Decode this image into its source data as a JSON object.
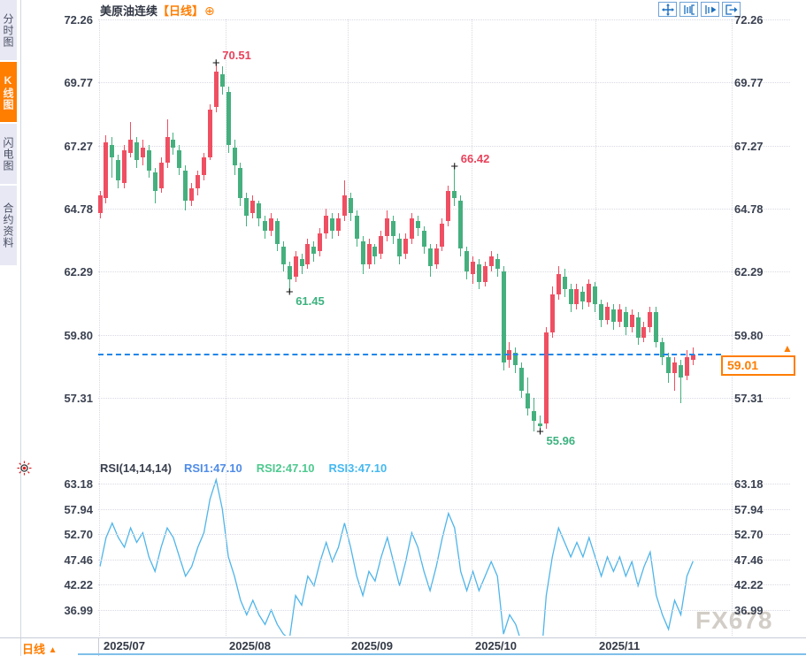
{
  "sidebar": {
    "items": [
      {
        "name": "timeshare-chart",
        "label": "分时图",
        "selected": false
      },
      {
        "name": "kline-chart",
        "label": "K线图",
        "selected": true
      },
      {
        "name": "lightning-chart",
        "label": "闪电图",
        "selected": false
      },
      {
        "name": "contract-info",
        "label": "合约资料",
        "selected": false
      }
    ]
  },
  "header": {
    "symbol_name": "美原油连续",
    "period_tag": "【日线】",
    "add_icon": "⊕",
    "toolbar_icons": [
      "pan-crosshair-icon",
      "zoom-range-icon",
      "playback-icon",
      "exit-chart-icon"
    ]
  },
  "current_price": {
    "value": "59.01",
    "marker": "▲"
  },
  "annotations": [
    {
      "text": "70.51",
      "index": 19,
      "price": 70.51,
      "type": "high",
      "color": "#e8415a"
    },
    {
      "text": "66.42",
      "index": 58,
      "price": 66.42,
      "type": "high",
      "color": "#e8415a"
    },
    {
      "text": "61.45",
      "index": 31,
      "price": 61.45,
      "type": "low",
      "color": "#3cb27f"
    },
    {
      "text": "55.96",
      "index": 72,
      "price": 55.96,
      "type": "low",
      "color": "#3cb27f"
    }
  ],
  "rsi_header": {
    "title": "RSI(14,14,14)",
    "rsi1": {
      "label": "RSI1:47.10",
      "color": "#4f8ce8"
    },
    "rsi2": {
      "label": "RSI2:47.10",
      "color": "#4ec98f"
    },
    "rsi3": {
      "label": "RSI3:47.10",
      "color": "#45b8f0"
    }
  },
  "bottom_bar": {
    "period_label": "日线",
    "arrow": "▲"
  },
  "watermark": "FX678",
  "colors": {
    "up": "#ef4f62",
    "down": "#45b07e",
    "accent": "#ff7d00",
    "dashed_line": "#2287e8",
    "rsi_line": "#4fb5ea"
  },
  "chart_data": {
    "type": "candlestick",
    "title": "美原油连续【日线】",
    "price_axis": {
      "tick_labels": [
        "72.26",
        "69.77",
        "67.27",
        "64.78",
        "62.29",
        "59.80",
        "57.31"
      ],
      "range": [
        55.9,
        72.26
      ]
    },
    "rsi_axis": {
      "tick_labels": [
        "63.18",
        "57.94",
        "52.70",
        "47.46",
        "42.22",
        "36.99"
      ]
    },
    "x_axis": {
      "labels": [
        "2025/07",
        "2025/08",
        "2025/09",
        "2025/10",
        "2025/11"
      ]
    },
    "current_close": 59.01,
    "ohlc": [
      [
        64.6,
        65.5,
        64.4,
        65.3
      ],
      [
        65.2,
        67.7,
        65.0,
        67.4
      ],
      [
        67.3,
        67.6,
        66.0,
        66.8
      ],
      [
        66.7,
        66.9,
        65.6,
        65.9
      ],
      [
        65.8,
        67.3,
        65.6,
        67.1
      ],
      [
        67.0,
        68.2,
        66.8,
        67.5
      ],
      [
        67.4,
        67.6,
        66.4,
        66.7
      ],
      [
        66.8,
        67.5,
        66.5,
        67.2
      ],
      [
        67.1,
        67.3,
        66.0,
        66.3
      ],
      [
        66.2,
        66.4,
        65.0,
        65.5
      ],
      [
        65.6,
        66.8,
        65.4,
        66.6
      ],
      [
        66.6,
        68.3,
        66.4,
        67.6
      ],
      [
        67.5,
        67.8,
        66.9,
        67.2
      ],
      [
        67.1,
        67.3,
        66.1,
        66.4
      ],
      [
        66.3,
        66.5,
        64.7,
        65.1
      ],
      [
        65.1,
        65.8,
        64.9,
        65.6
      ],
      [
        65.6,
        66.3,
        65.3,
        66.1
      ],
      [
        66.1,
        67.0,
        65.9,
        66.8
      ],
      [
        66.8,
        68.9,
        66.7,
        68.7
      ],
      [
        68.8,
        70.51,
        68.6,
        70.2
      ],
      [
        70.1,
        70.4,
        69.3,
        69.6
      ],
      [
        69.4,
        69.6,
        67.0,
        67.3
      ],
      [
        67.2,
        67.5,
        66.1,
        66.5
      ],
      [
        66.4,
        66.6,
        64.9,
        65.2
      ],
      [
        65.2,
        65.4,
        64.1,
        64.5
      ],
      [
        64.6,
        65.3,
        64.4,
        65.1
      ],
      [
        65.0,
        65.1,
        64.1,
        64.4
      ],
      [
        64.3,
        64.5,
        63.6,
        63.9
      ],
      [
        63.9,
        64.6,
        63.7,
        64.4
      ],
      [
        64.3,
        64.4,
        63.1,
        63.4
      ],
      [
        63.3,
        63.5,
        62.3,
        62.6
      ],
      [
        62.5,
        62.7,
        61.45,
        62.0
      ],
      [
        62.1,
        63.1,
        61.9,
        62.9
      ],
      [
        62.8,
        63.0,
        62.2,
        62.5
      ],
      [
        62.6,
        63.6,
        62.4,
        63.4
      ],
      [
        63.3,
        63.5,
        62.7,
        63.0
      ],
      [
        63.1,
        64.0,
        62.9,
        63.8
      ],
      [
        63.8,
        64.8,
        63.6,
        64.5
      ],
      [
        64.4,
        64.6,
        63.6,
        63.9
      ],
      [
        63.9,
        64.6,
        63.7,
        64.4
      ],
      [
        64.5,
        65.9,
        64.3,
        65.3
      ],
      [
        65.2,
        65.4,
        64.3,
        64.6
      ],
      [
        64.5,
        64.7,
        63.3,
        63.6
      ],
      [
        63.5,
        63.7,
        62.2,
        62.6
      ],
      [
        62.6,
        63.6,
        62.4,
        63.4
      ],
      [
        63.3,
        63.4,
        62.6,
        62.9
      ],
      [
        63.0,
        63.9,
        62.8,
        63.7
      ],
      [
        63.7,
        64.7,
        63.5,
        64.4
      ],
      [
        64.3,
        64.5,
        63.4,
        63.7
      ],
      [
        63.6,
        63.8,
        62.6,
        62.9
      ],
      [
        63.0,
        63.8,
        62.8,
        63.6
      ],
      [
        63.6,
        64.6,
        63.4,
        64.4
      ],
      [
        64.3,
        64.5,
        63.7,
        64.0
      ],
      [
        63.9,
        64.1,
        63.0,
        63.3
      ],
      [
        63.2,
        63.4,
        62.1,
        62.5
      ],
      [
        62.6,
        63.4,
        62.4,
        63.2
      ],
      [
        63.3,
        64.4,
        63.1,
        64.2
      ],
      [
        64.3,
        65.7,
        64.1,
        65.5
      ],
      [
        65.5,
        66.42,
        64.9,
        65.2
      ],
      [
        65.1,
        65.3,
        62.9,
        63.2
      ],
      [
        63.1,
        63.3,
        62.0,
        62.3
      ],
      [
        62.2,
        62.9,
        61.8,
        62.7
      ],
      [
        62.6,
        62.8,
        61.6,
        61.9
      ],
      [
        61.9,
        62.7,
        61.7,
        62.5
      ],
      [
        62.5,
        63.1,
        62.3,
        62.9
      ],
      [
        62.8,
        63.0,
        62.1,
        62.4
      ],
      [
        62.3,
        62.5,
        58.4,
        58.7
      ],
      [
        58.8,
        59.5,
        58.5,
        59.2
      ],
      [
        59.1,
        59.3,
        58.3,
        58.6
      ],
      [
        58.5,
        58.7,
        57.3,
        57.6
      ],
      [
        57.5,
        58.1,
        56.6,
        56.9
      ],
      [
        56.8,
        57.3,
        56.0,
        56.4
      ],
      [
        56.3,
        56.6,
        55.96,
        56.2
      ],
      [
        56.3,
        60.1,
        56.1,
        59.9
      ],
      [
        59.9,
        61.7,
        59.7,
        61.4
      ],
      [
        61.4,
        62.5,
        61.2,
        62.2
      ],
      [
        62.1,
        62.4,
        61.3,
        61.6
      ],
      [
        61.6,
        61.8,
        60.7,
        61.0
      ],
      [
        61.0,
        61.8,
        60.8,
        61.6
      ],
      [
        61.5,
        61.7,
        60.8,
        61.1
      ],
      [
        61.1,
        62.0,
        60.9,
        61.8
      ],
      [
        61.7,
        61.9,
        60.7,
        61.0
      ],
      [
        61.0,
        61.2,
        60.1,
        60.4
      ],
      [
        60.4,
        61.1,
        60.2,
        60.9
      ],
      [
        60.8,
        61.0,
        60.0,
        60.3
      ],
      [
        60.3,
        61.0,
        60.1,
        60.8
      ],
      [
        60.7,
        60.9,
        59.8,
        60.1
      ],
      [
        60.1,
        60.8,
        59.9,
        60.6
      ],
      [
        60.5,
        60.7,
        59.4,
        59.7
      ],
      [
        59.7,
        60.3,
        59.5,
        60.1
      ],
      [
        60.1,
        60.9,
        59.9,
        60.7
      ],
      [
        60.7,
        60.9,
        59.3,
        59.5
      ],
      [
        59.5,
        59.7,
        58.6,
        58.9
      ],
      [
        58.9,
        59.1,
        57.9,
        58.3
      ],
      [
        58.3,
        58.9,
        57.6,
        58.7
      ],
      [
        58.6,
        58.8,
        57.1,
        58.1
      ],
      [
        58.2,
        59.2,
        58.0,
        58.9
      ],
      [
        58.8,
        59.3,
        58.6,
        59.01
      ]
    ],
    "rsi_series": {
      "name": "RSI(14)",
      "values": [
        46,
        52,
        55,
        52,
        50,
        54,
        51,
        53,
        48,
        45,
        50,
        54,
        52,
        48,
        44,
        46,
        50,
        53,
        60,
        64,
        58,
        48,
        44,
        39,
        36,
        39,
        36,
        34,
        37,
        34,
        32,
        31,
        40,
        38,
        44,
        42,
        47,
        51,
        47,
        50,
        55,
        50,
        44,
        40,
        45,
        43,
        48,
        52,
        47,
        42,
        47,
        53,
        50,
        45,
        41,
        46,
        52,
        57,
        54,
        45,
        41,
        45,
        41,
        44,
        47,
        44,
        32,
        36,
        34,
        30,
        27,
        25,
        24,
        40,
        48,
        54,
        51,
        48,
        51,
        48,
        52,
        48,
        44,
        48,
        45,
        48,
        44,
        47,
        42,
        46,
        49,
        40,
        36,
        33,
        39,
        36,
        44,
        47.1
      ]
    }
  }
}
